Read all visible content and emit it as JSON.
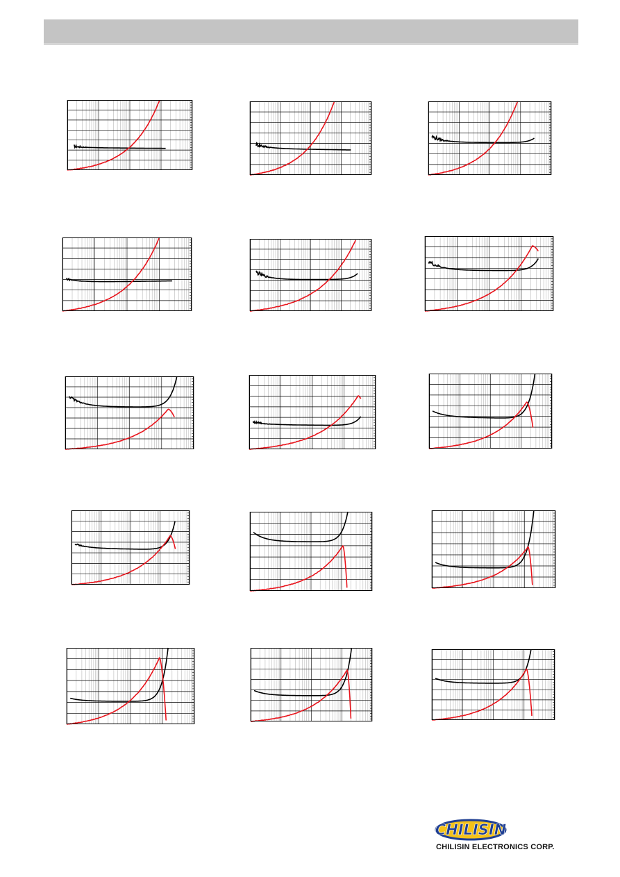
{
  "header": {
    "band_color": "#c4c4c4",
    "rule_color": "#d6d6d6"
  },
  "colors": {
    "inductance": "#000000",
    "q_factor": "#e8141c",
    "grid_major": "#000000",
    "grid_minor": "#b8b8b8",
    "frame": "#000000"
  },
  "chart_data": [
    {
      "id": "c1",
      "type": "line",
      "scale": "log-x",
      "title": "",
      "xlabel": "",
      "ylabel": "",
      "xlim": [
        1,
        10000
      ],
      "ylim": [
        0,
        1
      ],
      "grid": true,
      "legend": "none",
      "series": [
        {
          "shape": "flat",
          "start": [
            1.6,
            0.34
          ],
          "level": 0.32,
          "end": [
            1400,
            0.31
          ],
          "noise": 0.02
        },
        {
          "shape": "rise",
          "start": [
            1,
            0.0
          ],
          "end": [
            900,
            1.0
          ],
          "k": 3.2
        }
      ]
    },
    {
      "id": "c2",
      "type": "line",
      "scale": "log-x",
      "title": "",
      "xlabel": "",
      "ylabel": "",
      "xlim": [
        1,
        10000
      ],
      "ylim": [
        0,
        1
      ],
      "grid": true,
      "legend": "none",
      "series": [
        {
          "shape": "flat",
          "start": [
            1.6,
            0.42
          ],
          "level": 0.36,
          "end": [
            2100,
            0.34
          ],
          "noise": 0.03
        },
        {
          "shape": "rise",
          "start": [
            1,
            0.0
          ],
          "end": [
            600,
            1.0
          ],
          "k": 3.0
        }
      ]
    },
    {
      "id": "c3",
      "type": "line",
      "scale": "log-x",
      "title": "",
      "xlabel": "",
      "ylabel": "",
      "xlim": [
        1,
        10000
      ],
      "ylim": [
        0,
        1
      ],
      "grid": true,
      "legend": "none",
      "series": [
        {
          "shape": "flat",
          "start": [
            1.3,
            0.52
          ],
          "level": 0.44,
          "end": [
            2800,
            0.5
          ],
          "noise": 0.03,
          "tail": 0.06
        },
        {
          "shape": "rise",
          "start": [
            1,
            0.0
          ],
          "end": [
            800,
            1.0
          ],
          "k": 3.0
        }
      ]
    },
    {
      "id": "c4",
      "type": "line",
      "scale": "log-x",
      "title": "",
      "xlabel": "",
      "ylabel": "",
      "xlim": [
        1,
        10000
      ],
      "ylim": [
        0,
        1
      ],
      "grid": true,
      "legend": "none",
      "series": [
        {
          "shape": "flat",
          "start": [
            1.3,
            0.44
          ],
          "level": 0.39,
          "end": [
            2500,
            0.41
          ],
          "noise": 0.015
        },
        {
          "shape": "rise",
          "start": [
            1,
            0.0
          ],
          "end": [
            1000,
            1.0
          ],
          "k": 3.0
        }
      ]
    },
    {
      "id": "c5",
      "type": "line",
      "scale": "log-x",
      "title": "",
      "xlabel": "",
      "ylabel": "",
      "xlim": [
        1,
        10000
      ],
      "ylim": [
        0,
        1
      ],
      "grid": true,
      "legend": "none",
      "series": [
        {
          "shape": "flat",
          "start": [
            1.6,
            0.54
          ],
          "level": 0.43,
          "end": [
            3500,
            0.52
          ],
          "noise": 0.03,
          "tail": 0.08
        },
        {
          "shape": "rise",
          "start": [
            1,
            0.0
          ],
          "end": [
            3000,
            0.98
          ],
          "k": 3.0
        }
      ]
    },
    {
      "id": "c6",
      "type": "line",
      "scale": "log-x",
      "title": "",
      "xlabel": "",
      "ylabel": "",
      "xlim": [
        1,
        10000
      ],
      "ylim": [
        0,
        1
      ],
      "grid": true,
      "legend": "none",
      "series": [
        {
          "shape": "flat",
          "start": [
            1.3,
            0.66
          ],
          "level": 0.54,
          "end": [
            3400,
            0.7
          ],
          "noise": 0.03,
          "tail": 0.16
        },
        {
          "shape": "peak",
          "start": [
            1,
            0.0
          ],
          "peak": [
            2200,
            0.87
          ],
          "end": [
            3400,
            0.8
          ],
          "k": 3.0
        }
      ]
    },
    {
      "id": "c7",
      "type": "line",
      "scale": "log-x",
      "title": "",
      "xlabel": "",
      "ylabel": "",
      "xlim": [
        1,
        10000
      ],
      "ylim": [
        0,
        1
      ],
      "grid": true,
      "legend": "none",
      "series": [
        {
          "shape": "flat",
          "start": [
            1.3,
            0.73
          ],
          "level": 0.58,
          "end": [
            3000,
            1.0
          ],
          "noise": 0.02,
          "tail": 0.42
        },
        {
          "shape": "peak",
          "start": [
            1,
            0.0
          ],
          "peak": [
            1600,
            0.55
          ],
          "end": [
            2500,
            0.44
          ],
          "k": 3.0
        }
      ]
    },
    {
      "id": "c8",
      "type": "line",
      "scale": "log-x",
      "title": "",
      "xlabel": "",
      "ylabel": "",
      "xlim": [
        1,
        10000
      ],
      "ylim": [
        0,
        1
      ],
      "grid": true,
      "legend": "none",
      "series": [
        {
          "shape": "flat",
          "start": [
            1.3,
            0.37
          ],
          "level": 0.33,
          "end": [
            3400,
            0.44
          ],
          "noise": 0.02,
          "tail": 0.12
        },
        {
          "shape": "peak",
          "start": [
            1,
            0.0
          ],
          "peak": [
            2800,
            0.72
          ],
          "end": [
            3400,
            0.68
          ],
          "k": 3.0
        }
      ]
    },
    {
      "id": "c9",
      "type": "line",
      "scale": "log-x",
      "title": "",
      "xlabel": "",
      "ylabel": "",
      "xlim": [
        1,
        10000
      ],
      "ylim": [
        0,
        1
      ],
      "grid": true,
      "legend": "none",
      "series": [
        {
          "shape": "flat",
          "start": [
            1.3,
            0.5
          ],
          "level": 0.42,
          "end": [
            2800,
            1.0
          ],
          "noise": 0.0,
          "tail": 0.6
        },
        {
          "shape": "peak",
          "start": [
            1,
            0.0
          ],
          "peak": [
            1500,
            0.62
          ],
          "end": [
            2400,
            0.28
          ],
          "k": 3.0
        }
      ]
    },
    {
      "id": "c10",
      "type": "line",
      "scale": "log-x",
      "title": "",
      "xlabel": "",
      "ylabel": "",
      "xlim": [
        1,
        10000
      ],
      "ylim": [
        0,
        1
      ],
      "grid": true,
      "legend": "none",
      "series": [
        {
          "shape": "flat",
          "start": [
            1.3,
            0.55
          ],
          "level": 0.49,
          "end": [
            3200,
            0.85
          ],
          "noise": 0.01,
          "tail": 0.38
        },
        {
          "shape": "peak",
          "start": [
            1,
            0.0
          ],
          "peak": [
            2200,
            0.66
          ],
          "end": [
            3300,
            0.48
          ],
          "k": 3.0
        }
      ]
    },
    {
      "id": "c11",
      "type": "line",
      "scale": "log-x",
      "title": "",
      "xlabel": "",
      "ylabel": "",
      "xlim": [
        1,
        10000
      ],
      "ylim": [
        0,
        1
      ],
      "grid": true,
      "legend": "none",
      "series": [
        {
          "shape": "flat",
          "start": [
            1.3,
            0.74
          ],
          "level": 0.62,
          "end": [
            1600,
            1.0
          ],
          "noise": 0.0,
          "tail": 0.38
        },
        {
          "shape": "peak",
          "start": [
            1,
            0.0
          ],
          "peak": [
            1100,
            0.57
          ],
          "end": [
            1500,
            0.04
          ],
          "k": 3.0
        }
      ]
    },
    {
      "id": "c12",
      "type": "line",
      "scale": "log-x",
      "title": "",
      "xlabel": "",
      "ylabel": "",
      "xlim": [
        1,
        10000
      ],
      "ylim": [
        0,
        1
      ],
      "grid": true,
      "legend": "none",
      "series": [
        {
          "shape": "flat",
          "start": [
            1.3,
            0.33
          ],
          "level": 0.26,
          "end": [
            2000,
            1.0
          ],
          "noise": 0.0,
          "tail": 0.74
        },
        {
          "shape": "peak",
          "start": [
            1,
            0.0
          ],
          "peak": [
            1300,
            0.53
          ],
          "end": [
            1800,
            0.04
          ],
          "k": 3.0
        }
      ]
    },
    {
      "id": "c13",
      "type": "line",
      "scale": "log-x",
      "title": "",
      "xlabel": "",
      "ylabel": "",
      "xlim": [
        1,
        10000
      ],
      "ylim": [
        0,
        1
      ],
      "grid": true,
      "legend": "none",
      "series": [
        {
          "shape": "flat",
          "start": [
            1.3,
            0.34
          ],
          "level": 0.3,
          "end": [
            1500,
            1.0
          ],
          "noise": 0.0,
          "tail": 0.7
        },
        {
          "shape": "peak",
          "start": [
            1,
            0.0
          ],
          "peak": [
            800,
            0.87
          ],
          "end": [
            1300,
            0.05
          ],
          "k": 3.0
        }
      ]
    },
    {
      "id": "c14",
      "type": "line",
      "scale": "log-x",
      "title": "",
      "xlabel": "",
      "ylabel": "",
      "xlim": [
        1,
        10000
      ],
      "ylim": [
        0,
        1
      ],
      "grid": true,
      "legend": "none",
      "series": [
        {
          "shape": "flat",
          "start": [
            1.3,
            0.42
          ],
          "level": 0.35,
          "end": [
            2100,
            1.0
          ],
          "noise": 0.0,
          "tail": 0.65
        },
        {
          "shape": "peak",
          "start": [
            1,
            0.0
          ],
          "peak": [
            1500,
            0.7
          ],
          "end": [
            2000,
            0.04
          ],
          "k": 3.0
        }
      ]
    },
    {
      "id": "c15",
      "type": "line",
      "scale": "log-x",
      "title": "",
      "xlabel": "",
      "ylabel": "",
      "xlim": [
        1,
        10000
      ],
      "ylim": [
        0,
        1
      ],
      "grid": true,
      "legend": "none",
      "series": [
        {
          "shape": "flat",
          "start": [
            1.3,
            0.59
          ],
          "level": 0.52,
          "end": [
            1700,
            1.0
          ],
          "noise": 0.0,
          "tail": 0.48
        },
        {
          "shape": "peak",
          "start": [
            1,
            0.0
          ],
          "peak": [
            1200,
            0.72
          ],
          "end": [
            1800,
            0.06
          ],
          "k": 3.0
        }
      ]
    }
  ],
  "footer": {
    "company": "CHILISIN ELECTRONICS CORP.",
    "logo_text": "CHILISIN"
  }
}
